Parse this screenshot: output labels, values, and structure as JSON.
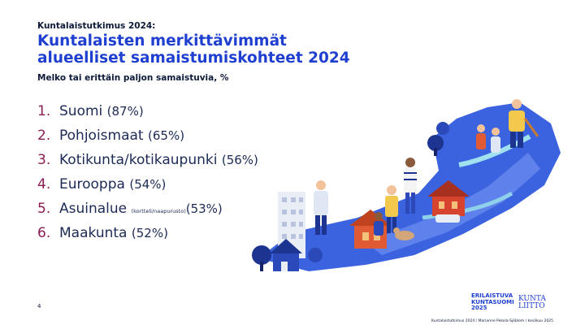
{
  "slide": {
    "kicker": "Kuntalaistutkimus 2024:",
    "title": "Kuntalaisten merkittävimmät alueelliset samaistumiskohteet 2024",
    "subtitle": "Melko tai erittäin paljon samaistuvia, %",
    "page_number": "4",
    "footer": "Kuntalaistutkimus 2024 / Marianne Pekola-Sjöblom / kesäkuu 2025"
  },
  "items": [
    {
      "num": "1.",
      "name": "Suomi",
      "note": "",
      "pct": "(87%)"
    },
    {
      "num": "2.",
      "name": "Pohjoismaat",
      "note": "",
      "pct": "(65%)"
    },
    {
      "num": "3.",
      "name": "Kotikunta/kotikaupunki",
      "note": "",
      "pct": "(56%)"
    },
    {
      "num": "4.",
      "name": "Eurooppa",
      "note": "",
      "pct": "(54%)"
    },
    {
      "num": "5.",
      "name": "Asuinalue",
      "note": "(kortteli/naapurusto)",
      "pct": "(53%)"
    },
    {
      "num": "6.",
      "name": "Maakunta",
      "note": "",
      "pct": "(52%)"
    }
  ],
  "logos": {
    "brand_line1": "ERILAISTUVA",
    "brand_line2": "KUNTASUOMI",
    "brand_line3": "2025",
    "kunta_line1": "KUNTA",
    "kunta_line2": "LIITTO"
  },
  "colors": {
    "title": "#1f3fd1",
    "number": "#8a1c54",
    "text": "#1c2a55",
    "map": "#3b63e0"
  }
}
